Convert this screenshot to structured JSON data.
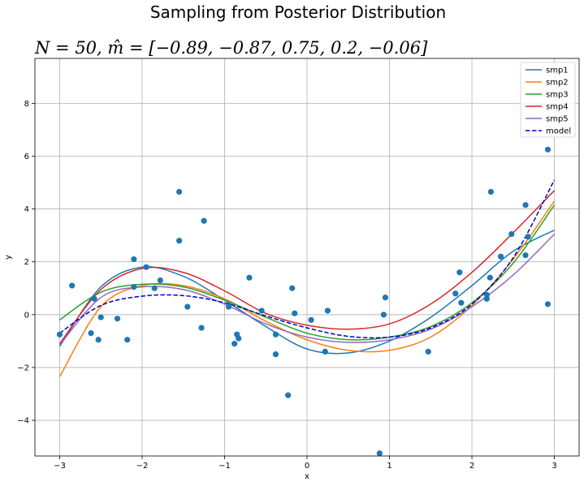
{
  "chart_data": {
    "type": "line",
    "suptitle": "Sampling from Posterior Distribution",
    "title": "N = 50, m̂ = [−0.89, −0.87, 0.75, 0.2, −0.06]",
    "xlabel": "x",
    "ylabel": "y",
    "xlim": [
      -3.3,
      3.3
    ],
    "ylim": [
      -5.35,
      9.7
    ],
    "x_ticks": [
      -3,
      -2,
      -1,
      0,
      1,
      2,
      3
    ],
    "y_ticks": [
      -4,
      -2,
      0,
      2,
      4,
      6,
      8
    ],
    "x_tick_labels": [
      "−3",
      "−2",
      "−1",
      "0",
      "1",
      "2",
      "3"
    ],
    "y_tick_labels": [
      "−4",
      "−2",
      "0",
      "2",
      "4",
      "6",
      "8"
    ],
    "grid": true,
    "legend_position": "top-right",
    "x": [
      -3.0,
      -2.5,
      -2.0,
      -1.5,
      -1.0,
      -0.5,
      0.0,
      0.5,
      1.0,
      1.5,
      2.0,
      2.5,
      3.0
    ],
    "series": [
      {
        "name": "smp1",
        "color": "#1f77b4",
        "dash": false,
        "values": [
          -1.2,
          1.05,
          1.8,
          1.45,
          0.55,
          -0.45,
          -1.3,
          -1.45,
          -1.0,
          -0.1,
          1.1,
          2.4,
          3.2
        ]
      },
      {
        "name": "smp2",
        "color": "#ff7f0e",
        "dash": false,
        "values": [
          -2.35,
          0.3,
          1.1,
          1.1,
          0.6,
          -0.25,
          -0.95,
          -1.35,
          -1.35,
          -0.85,
          0.35,
          2.1,
          4.3
        ]
      },
      {
        "name": "smp3",
        "color": "#2ca02c",
        "dash": false,
        "values": [
          -0.2,
          0.85,
          1.15,
          1.05,
          0.55,
          -0.1,
          -0.7,
          -0.95,
          -0.85,
          -0.45,
          0.45,
          1.95,
          4.15
        ]
      },
      {
        "name": "smp4",
        "color": "#d62728",
        "dash": false,
        "values": [
          -1.1,
          0.95,
          1.75,
          1.6,
          0.9,
          0.05,
          -0.4,
          -0.55,
          -0.35,
          0.4,
          1.6,
          3.1,
          4.7
        ]
      },
      {
        "name": "smp5",
        "color": "#9467bd",
        "dash": false,
        "values": [
          -1.15,
          0.65,
          1.05,
          0.95,
          0.4,
          -0.35,
          -0.85,
          -1.05,
          -0.95,
          -0.55,
          0.3,
          1.5,
          3.05
        ]
      },
      {
        "name": "model",
        "color": "#0000cc",
        "dash": true,
        "values": [
          -0.7,
          0.35,
          0.7,
          0.72,
          0.45,
          -0.05,
          -0.5,
          -0.82,
          -0.85,
          -0.5,
          0.4,
          2.15,
          5.1
        ]
      }
    ],
    "scatter": {
      "color": "#1f77b4",
      "points": [
        [
          -3.0,
          -0.75
        ],
        [
          -2.85,
          1.1
        ],
        [
          -2.62,
          -0.7
        ],
        [
          -2.58,
          0.6
        ],
        [
          -2.53,
          -0.95
        ],
        [
          -2.5,
          -0.1
        ],
        [
          -2.3,
          -0.15
        ],
        [
          -2.18,
          -0.95
        ],
        [
          -2.1,
          2.1
        ],
        [
          -2.1,
          1.05
        ],
        [
          -1.95,
          1.8
        ],
        [
          -1.85,
          1.0
        ],
        [
          -1.78,
          1.3
        ],
        [
          -1.55,
          4.65
        ],
        [
          -1.55,
          2.8
        ],
        [
          -1.45,
          0.3
        ],
        [
          -1.28,
          -0.5
        ],
        [
          -1.25,
          3.55
        ],
        [
          -0.95,
          0.3
        ],
        [
          -0.88,
          -1.1
        ],
        [
          -0.85,
          -0.75
        ],
        [
          -0.83,
          -0.9
        ],
        [
          -0.7,
          1.4
        ],
        [
          -0.55,
          0.15
        ],
        [
          -0.38,
          -0.75
        ],
        [
          -0.38,
          -1.5
        ],
        [
          -0.23,
          -3.05
        ],
        [
          -0.18,
          1.0
        ],
        [
          -0.15,
          0.05
        ],
        [
          0.05,
          -0.2
        ],
        [
          0.22,
          -1.4
        ],
        [
          0.25,
          0.15
        ],
        [
          0.88,
          -5.25
        ],
        [
          0.93,
          0.0
        ],
        [
          0.95,
          0.65
        ],
        [
          1.47,
          -1.4
        ],
        [
          1.8,
          0.8
        ],
        [
          1.85,
          1.6
        ],
        [
          1.87,
          0.45
        ],
        [
          2.18,
          0.6
        ],
        [
          2.18,
          0.75
        ],
        [
          2.22,
          1.4
        ],
        [
          2.23,
          4.65
        ],
        [
          2.35,
          2.2
        ],
        [
          2.48,
          3.05
        ],
        [
          2.65,
          4.15
        ],
        [
          2.65,
          2.25
        ],
        [
          2.68,
          2.95
        ],
        [
          2.92,
          6.25
        ],
        [
          2.92,
          0.4
        ]
      ]
    }
  }
}
